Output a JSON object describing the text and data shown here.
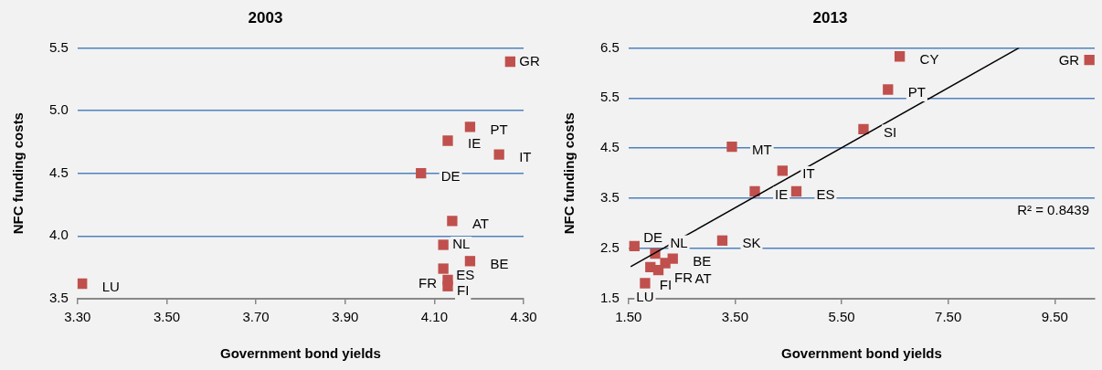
{
  "chart_data": [
    {
      "type": "scatter",
      "title": "2003",
      "xlabel": "Government bond yields",
      "ylabel": "NFC funding costs",
      "marker": "square",
      "grid": "y",
      "legend": false,
      "xlim": [
        3.3,
        4.3
      ],
      "xticks": [
        {
          "value": 3.3,
          "label": "3.30"
        },
        {
          "value": 3.5,
          "label": "3.50"
        },
        {
          "value": 3.7,
          "label": "3.70"
        },
        {
          "value": 3.9,
          "label": "3.90"
        },
        {
          "value": 4.1,
          "label": "4.10"
        },
        {
          "value": 4.3,
          "label": "4.30"
        }
      ],
      "ylim": [
        3.5,
        5.5
      ],
      "yticks": [
        3.5,
        {
          "value": 4,
          "label": "4.0"
        },
        4.5,
        {
          "value": 5,
          "label": "5.0"
        },
        5.5
      ],
      "series": [
        {
          "color": "#c0504d",
          "x": [
            4.27,
            4.18,
            4.13,
            4.245,
            4.07,
            4.14,
            4.12,
            4.18,
            4.12,
            4.13,
            4.13,
            3.31
          ],
          "values": [
            5.39,
            4.87,
            4.76,
            4.65,
            4.5,
            4.12,
            3.93,
            3.8,
            3.74,
            3.65,
            3.6,
            3.62
          ]
        }
      ],
      "annotations": [
        {
          "text": "GR",
          "x": 4.27,
          "y": 5.39
        },
        {
          "text": "PT",
          "x": 4.18,
          "y": 4.87
        },
        {
          "text": "IE",
          "x": 4.13,
          "y": 4.76
        },
        {
          "text": "IT",
          "x": 4.245,
          "y": 4.65
        },
        {
          "text": "DE",
          "x": 4.07,
          "y": 4.5
        },
        {
          "text": "AT",
          "x": 4.14,
          "y": 4.12
        },
        {
          "text": "NL",
          "x": 4.12,
          "y": 3.93
        },
        {
          "text": "BE",
          "x": 4.18,
          "y": 3.8
        },
        {
          "text": "ES",
          "x": 4.12,
          "y": 3.74
        },
        {
          "text": "FR",
          "x": 4.13,
          "y": 3.65
        },
        {
          "text": "FI",
          "x": 4.13,
          "y": 3.6
        },
        {
          "text": "LU",
          "x": 3.31,
          "y": 3.62
        }
      ]
    },
    {
      "type": "scatter",
      "title": "2013",
      "xlabel": "Government bond yields",
      "ylabel": "NFC funding costs",
      "marker": "square",
      "grid": "y",
      "legend": false,
      "xlim": [
        1.5,
        10.25
      ],
      "xticks": [
        {
          "value": 1.5,
          "label": "1.50"
        },
        {
          "value": 3.5,
          "label": "3.50"
        },
        {
          "value": 5.5,
          "label": "5.50"
        },
        {
          "value": 7.5,
          "label": "7.50"
        },
        {
          "value": 9.5,
          "label": "9.50"
        }
      ],
      "ylim": [
        1.5,
        6.5
      ],
      "yticks": [
        1.5,
        2.5,
        3.5,
        4.5,
        5.5,
        6.5
      ],
      "series": [
        {
          "color": "#c0504d",
          "x": [
            6.59,
            6.37,
            5.91,
            3.44,
            4.39,
            3.87,
            4.65,
            3.26,
            10.15,
            1.61,
            2.0,
            2.33,
            2.19,
            1.91,
            2.06,
            1.81
          ],
          "values": [
            6.33,
            5.67,
            4.88,
            4.53,
            4.05,
            3.64,
            3.64,
            2.66,
            6.26,
            2.55,
            2.4,
            2.3,
            2.21,
            2.13,
            2.07,
            1.81
          ]
        },
        {
          "type": "line",
          "marker": "none",
          "color": "#000000",
          "x": [
            1.54,
            8.83
          ],
          "values": [
            2.14,
            6.5
          ]
        }
      ],
      "annotations": [
        {
          "text": "CY",
          "x": 6.59,
          "y": 6.33
        },
        {
          "text": "PT",
          "x": 6.37,
          "y": 5.67
        },
        {
          "text": "SI",
          "x": 5.91,
          "y": 4.88
        },
        {
          "text": "MT",
          "x": 3.44,
          "y": 4.53
        },
        {
          "text": "IT",
          "x": 4.39,
          "y": 4.05
        },
        {
          "text": "IE",
          "x": 3.87,
          "y": 3.64
        },
        {
          "text": "ES",
          "x": 4.65,
          "y": 3.64
        },
        {
          "text": "SK",
          "x": 3.26,
          "y": 2.66
        },
        {
          "text": "GR",
          "x": 10.15,
          "y": 6.26
        },
        {
          "text": "DE",
          "x": 1.61,
          "y": 2.55
        },
        {
          "text": "NL",
          "x": 2.0,
          "y": 2.4
        },
        {
          "text": "BE",
          "x": 2.33,
          "y": 2.3
        },
        {
          "text": "FR",
          "x": 2.19,
          "y": 2.21
        },
        {
          "text": "FI",
          "x": 1.91,
          "y": 2.13
        },
        {
          "text": "AT",
          "x": 2.06,
          "y": 2.07
        },
        {
          "text": "LU",
          "x": 1.81,
          "y": 1.81
        },
        "R² = 0.8439"
      ]
    }
  ]
}
